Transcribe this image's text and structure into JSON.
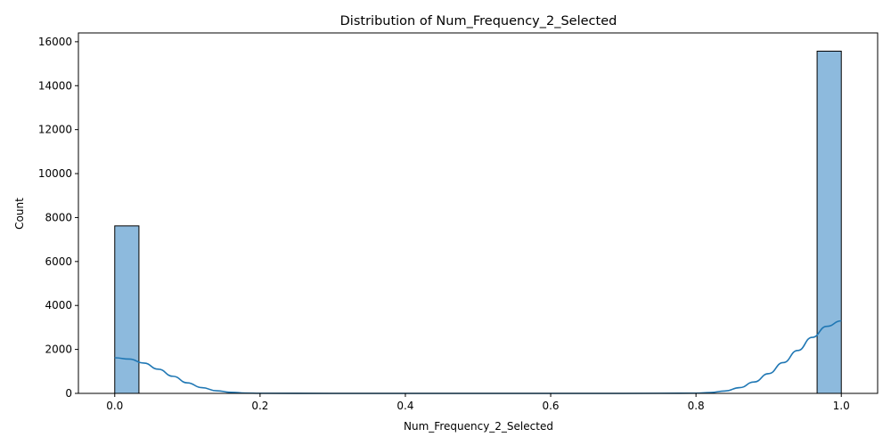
{
  "chart_data": {
    "type": "bar",
    "title": "Distribution of Num_Frequency_2_Selected",
    "xlabel": "Num_Frequency_2_Selected",
    "ylabel": "Count",
    "xlim": [
      -0.05,
      1.05
    ],
    "ylim": [
      0,
      16400
    ],
    "xticks": [
      0.0,
      0.2,
      0.4,
      0.6,
      0.8,
      1.0
    ],
    "xtick_labels": [
      "0.0",
      "0.2",
      "0.4",
      "0.6",
      "0.8",
      "1.0"
    ],
    "yticks": [
      0,
      2000,
      4000,
      6000,
      8000,
      10000,
      12000,
      14000,
      16000
    ],
    "ytick_labels": [
      "0",
      "2000",
      "4000",
      "6000",
      "8000",
      "10000",
      "12000",
      "14000",
      "16000"
    ],
    "grid": false,
    "bin_count": 30,
    "bins": [
      {
        "x_start": 0.0,
        "x_end": 0.0333,
        "count": 7620
      },
      {
        "x_start": 0.9667,
        "x_end": 1.0,
        "count": 15570
      }
    ],
    "kde": {
      "x": [
        0.0,
        0.02,
        0.04,
        0.06,
        0.08,
        0.1,
        0.12,
        0.14,
        0.16,
        0.18,
        0.2,
        0.3,
        0.4,
        0.5,
        0.6,
        0.7,
        0.8,
        0.82,
        0.84,
        0.86,
        0.88,
        0.9,
        0.92,
        0.94,
        0.96,
        0.98,
        1.0
      ],
      "y": [
        1620,
        1560,
        1380,
        1100,
        780,
        480,
        260,
        120,
        50,
        15,
        5,
        0,
        0,
        0,
        0,
        0,
        10,
        40,
        110,
        260,
        520,
        900,
        1400,
        1950,
        2550,
        3050,
        3300
      ]
    },
    "colors": {
      "bar_fill": "#8dbadd",
      "bar_edge": "#000000",
      "kde_line": "#1f77b4"
    }
  }
}
